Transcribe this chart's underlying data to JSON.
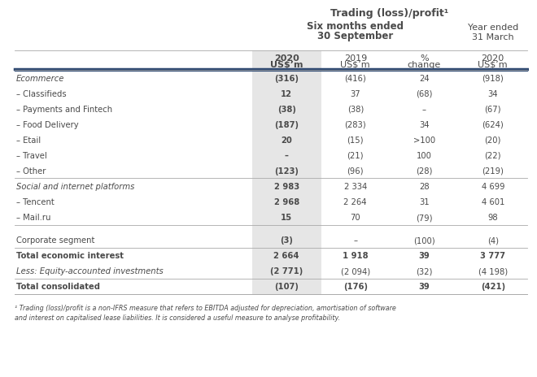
{
  "title": "Trading (loss)/profit¹",
  "subtitle1": "Six months ended",
  "subtitle2": "30 September",
  "year_ended1": "Year ended",
  "year_ended2": "31 March",
  "col_headers_bold": [
    "2020",
    "US$’m"
  ],
  "col_headers_normal": [
    [
      "2019",
      "US$’m"
    ],
    [
      "%",
      "change"
    ],
    [
      "2020",
      "US$’m"
    ]
  ],
  "rows": [
    {
      "label": "Ecommerce",
      "italic": true,
      "bold": false,
      "vals": [
        "(316)",
        "(416)",
        "24",
        "(918)"
      ],
      "sep_above": true,
      "sep_below": false
    },
    {
      "label": "– Classifieds",
      "italic": false,
      "bold": false,
      "vals": [
        "12",
        "37",
        "(68)",
        "34"
      ],
      "sep_above": false,
      "sep_below": false
    },
    {
      "label": "– Payments and Fintech",
      "italic": false,
      "bold": false,
      "vals": [
        "(38)",
        "(38)",
        "–",
        "(67)"
      ],
      "sep_above": false,
      "sep_below": false
    },
    {
      "label": "– Food Delivery",
      "italic": false,
      "bold": false,
      "vals": [
        "(187)",
        "(283)",
        "34",
        "(624)"
      ],
      "sep_above": false,
      "sep_below": false
    },
    {
      "label": "– Etail",
      "italic": false,
      "bold": false,
      "vals": [
        "20",
        "(15)",
        ">100",
        "(20)"
      ],
      "sep_above": false,
      "sep_below": false
    },
    {
      "label": "– Travel",
      "italic": false,
      "bold": false,
      "vals": [
        "–",
        "(21)",
        "100",
        "(22)"
      ],
      "sep_above": false,
      "sep_below": false
    },
    {
      "label": "– Other",
      "italic": false,
      "bold": false,
      "vals": [
        "(123)",
        "(96)",
        "(28)",
        "(219)"
      ],
      "sep_above": false,
      "sep_below": false
    },
    {
      "label": "Social and internet platforms",
      "italic": true,
      "bold": false,
      "vals": [
        "2 983",
        "2 334",
        "28",
        "4 699"
      ],
      "sep_above": true,
      "sep_below": false
    },
    {
      "label": "– Tencent",
      "italic": false,
      "bold": false,
      "vals": [
        "2 968",
        "2 264",
        "31",
        "4 601"
      ],
      "sep_above": false,
      "sep_below": false
    },
    {
      "label": "– Mail.ru",
      "italic": false,
      "bold": false,
      "vals": [
        "15",
        "70",
        "(79)",
        "98"
      ],
      "sep_above": false,
      "sep_below": true
    },
    {
      "label": "",
      "italic": false,
      "bold": false,
      "vals": [
        "",
        "",
        "",
        ""
      ],
      "sep_above": false,
      "sep_below": false
    },
    {
      "label": "Corporate segment",
      "italic": false,
      "bold": false,
      "vals": [
        "(3)",
        "–",
        "(100)",
        "(4)"
      ],
      "sep_above": false,
      "sep_below": false
    },
    {
      "label": "Total economic interest",
      "italic": false,
      "bold": true,
      "vals": [
        "2 664",
        "1 918",
        "39",
        "3 777"
      ],
      "sep_above": true,
      "sep_below": false
    },
    {
      "label": "Less: Equity-accounted investments",
      "italic": true,
      "bold": false,
      "vals": [
        "(2 771)",
        "(2 094)",
        "(32)",
        "(4 198)"
      ],
      "sep_above": false,
      "sep_below": false
    },
    {
      "label": "Total consolidated",
      "italic": false,
      "bold": true,
      "vals": [
        "(107)",
        "(176)",
        "39",
        "(421)"
      ],
      "sep_above": true,
      "sep_below": true
    }
  ],
  "footnote": "¹ Trading (loss)/profit is a non-IFRS measure that refers to EBITDA adjusted for depreciation, amortisation of software\nand interest on capitalised lease liabilities. It is considered a useful measure to analyse profitability.",
  "shade_color": "#e6e6e6",
  "bg_color": "#ffffff",
  "text_color": "#4a4a4a",
  "blue_line_color": "#2c4770",
  "gray_line_color": "#aaaaaa"
}
